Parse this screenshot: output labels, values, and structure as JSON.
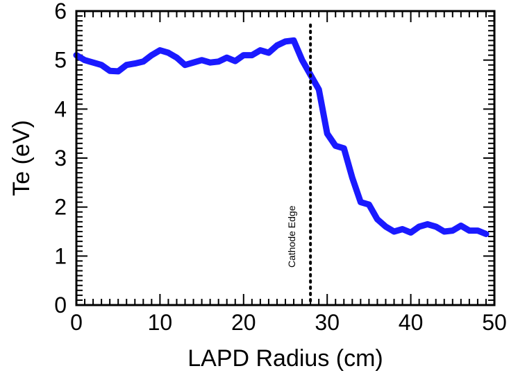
{
  "chart_data": {
    "type": "line",
    "title": "",
    "xlabel": "LAPD Radius (cm)",
    "ylabel": "Te (eV)",
    "xlim": [
      0,
      50
    ],
    "ylim": [
      0,
      6
    ],
    "xticks": [
      0,
      10,
      20,
      30,
      40,
      50
    ],
    "yticks": [
      0,
      1,
      2,
      3,
      4,
      5,
      6
    ],
    "grid": false,
    "series": [
      {
        "color": "#1a1aff",
        "points": [
          [
            0,
            5.1
          ],
          [
            1,
            5.0
          ],
          [
            2,
            4.95
          ],
          [
            3,
            4.9
          ],
          [
            4,
            4.78
          ],
          [
            5,
            4.77
          ],
          [
            6,
            4.9
          ],
          [
            7,
            4.93
          ],
          [
            8,
            4.97
          ],
          [
            9,
            5.1
          ],
          [
            10,
            5.2
          ],
          [
            11,
            5.15
          ],
          [
            12,
            5.05
          ],
          [
            13,
            4.9
          ],
          [
            14,
            4.95
          ],
          [
            15,
            5.0
          ],
          [
            16,
            4.95
          ],
          [
            17,
            4.97
          ],
          [
            18,
            5.05
          ],
          [
            19,
            4.98
          ],
          [
            20,
            5.1
          ],
          [
            21,
            5.1
          ],
          [
            22,
            5.2
          ],
          [
            23,
            5.15
          ],
          [
            24,
            5.3
          ],
          [
            25,
            5.38
          ],
          [
            26,
            5.4
          ],
          [
            27,
            5.0
          ],
          [
            28,
            4.7
          ],
          [
            29,
            4.4
          ],
          [
            30,
            3.5
          ],
          [
            31,
            3.25
          ],
          [
            32,
            3.2
          ],
          [
            33,
            2.6
          ],
          [
            34,
            2.1
          ],
          [
            35,
            2.05
          ],
          [
            36,
            1.75
          ],
          [
            37,
            1.6
          ],
          [
            38,
            1.5
          ],
          [
            39,
            1.55
          ],
          [
            40,
            1.48
          ],
          [
            41,
            1.6
          ],
          [
            42,
            1.65
          ],
          [
            43,
            1.6
          ],
          [
            44,
            1.5
          ],
          [
            45,
            1.52
          ],
          [
            46,
            1.62
          ],
          [
            47,
            1.52
          ],
          [
            48,
            1.52
          ],
          [
            49,
            1.45
          ]
        ]
      }
    ],
    "vline": {
      "x": 28,
      "style": "dotted",
      "label": "Cathode Edge"
    }
  }
}
